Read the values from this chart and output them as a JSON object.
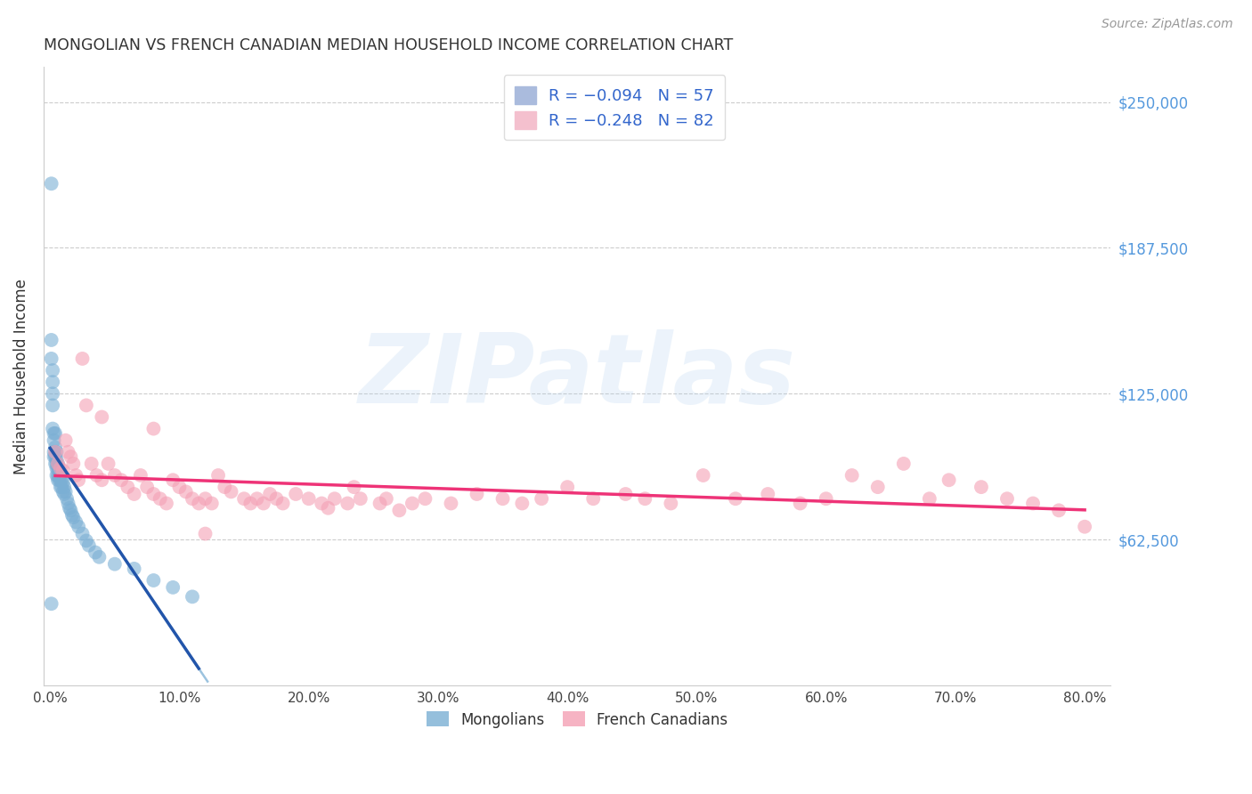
{
  "title": "MONGOLIAN VS FRENCH CANADIAN MEDIAN HOUSEHOLD INCOME CORRELATION CHART",
  "source": "Source: ZipAtlas.com",
  "ylabel": "Median Household Income",
  "xlabel_ticks": [
    "0.0%",
    "10.0%",
    "20.0%",
    "30.0%",
    "40.0%",
    "50.0%",
    "60.0%",
    "70.0%",
    "80.0%"
  ],
  "xlabel_vals": [
    0.0,
    0.1,
    0.2,
    0.3,
    0.4,
    0.5,
    0.6,
    0.7,
    0.8
  ],
  "ytick_labels": [
    "$62,500",
    "$125,000",
    "$187,500",
    "$250,000"
  ],
  "ytick_vals": [
    62500,
    125000,
    187500,
    250000
  ],
  "ylim": [
    0,
    265000
  ],
  "xlim": [
    -0.005,
    0.82
  ],
  "mongolian_color": "#7BAFD4",
  "french_color": "#F4A0B5",
  "mongolian_line_color": "#2255AA",
  "french_line_color": "#EE3377",
  "mongolian_scatter_alpha": 0.6,
  "french_scatter_alpha": 0.6,
  "mongolian_x": [
    0.001,
    0.001,
    0.001,
    0.002,
    0.002,
    0.002,
    0.002,
    0.002,
    0.003,
    0.003,
    0.003,
    0.003,
    0.004,
    0.004,
    0.004,
    0.004,
    0.005,
    0.005,
    0.005,
    0.005,
    0.005,
    0.006,
    0.006,
    0.006,
    0.006,
    0.007,
    0.007,
    0.007,
    0.008,
    0.008,
    0.008,
    0.009,
    0.009,
    0.01,
    0.01,
    0.011,
    0.011,
    0.012,
    0.013,
    0.014,
    0.015,
    0.016,
    0.017,
    0.018,
    0.02,
    0.022,
    0.025,
    0.028,
    0.03,
    0.035,
    0.038,
    0.05,
    0.065,
    0.08,
    0.095,
    0.11,
    0.001
  ],
  "mongolian_y": [
    215000,
    148000,
    140000,
    135000,
    130000,
    125000,
    120000,
    110000,
    108000,
    105000,
    100000,
    98000,
    108000,
    102000,
    98000,
    95000,
    100000,
    97000,
    95000,
    93000,
    90000,
    95000,
    93000,
    90000,
    88000,
    92000,
    90000,
    88000,
    90000,
    88000,
    85000,
    88000,
    85000,
    87000,
    83000,
    85000,
    82000,
    83000,
    80000,
    78000,
    76000,
    75000,
    73000,
    72000,
    70000,
    68000,
    65000,
    62000,
    60000,
    57000,
    55000,
    52000,
    50000,
    45000,
    42000,
    38000,
    35000
  ],
  "french_x": [
    0.004,
    0.006,
    0.008,
    0.01,
    0.012,
    0.014,
    0.016,
    0.018,
    0.02,
    0.022,
    0.025,
    0.028,
    0.032,
    0.036,
    0.04,
    0.045,
    0.05,
    0.055,
    0.06,
    0.065,
    0.07,
    0.075,
    0.08,
    0.085,
    0.09,
    0.095,
    0.1,
    0.105,
    0.11,
    0.115,
    0.12,
    0.125,
    0.13,
    0.135,
    0.14,
    0.15,
    0.155,
    0.16,
    0.165,
    0.17,
    0.175,
    0.18,
    0.19,
    0.2,
    0.21,
    0.215,
    0.22,
    0.23,
    0.235,
    0.24,
    0.255,
    0.26,
    0.27,
    0.28,
    0.29,
    0.31,
    0.33,
    0.35,
    0.365,
    0.38,
    0.4,
    0.42,
    0.445,
    0.46,
    0.48,
    0.505,
    0.53,
    0.555,
    0.58,
    0.6,
    0.62,
    0.64,
    0.66,
    0.68,
    0.695,
    0.72,
    0.74,
    0.76,
    0.78,
    0.8,
    0.04,
    0.08,
    0.12
  ],
  "french_y": [
    100000,
    95000,
    93000,
    92000,
    105000,
    100000,
    98000,
    95000,
    90000,
    88000,
    140000,
    120000,
    95000,
    90000,
    88000,
    95000,
    90000,
    88000,
    85000,
    82000,
    90000,
    85000,
    82000,
    80000,
    78000,
    88000,
    85000,
    83000,
    80000,
    78000,
    80000,
    78000,
    90000,
    85000,
    83000,
    80000,
    78000,
    80000,
    78000,
    82000,
    80000,
    78000,
    82000,
    80000,
    78000,
    76000,
    80000,
    78000,
    85000,
    80000,
    78000,
    80000,
    75000,
    78000,
    80000,
    78000,
    82000,
    80000,
    78000,
    80000,
    85000,
    80000,
    82000,
    80000,
    78000,
    90000,
    80000,
    82000,
    78000,
    80000,
    90000,
    85000,
    95000,
    80000,
    88000,
    85000,
    80000,
    78000,
    75000,
    68000,
    115000,
    110000,
    65000
  ],
  "watermark_text": "ZIPatlas",
  "background_color": "#FFFFFF",
  "grid_color": "#CCCCCC",
  "right_yaxis_color": "#5599DD",
  "legend_text_color": "#3366CC"
}
